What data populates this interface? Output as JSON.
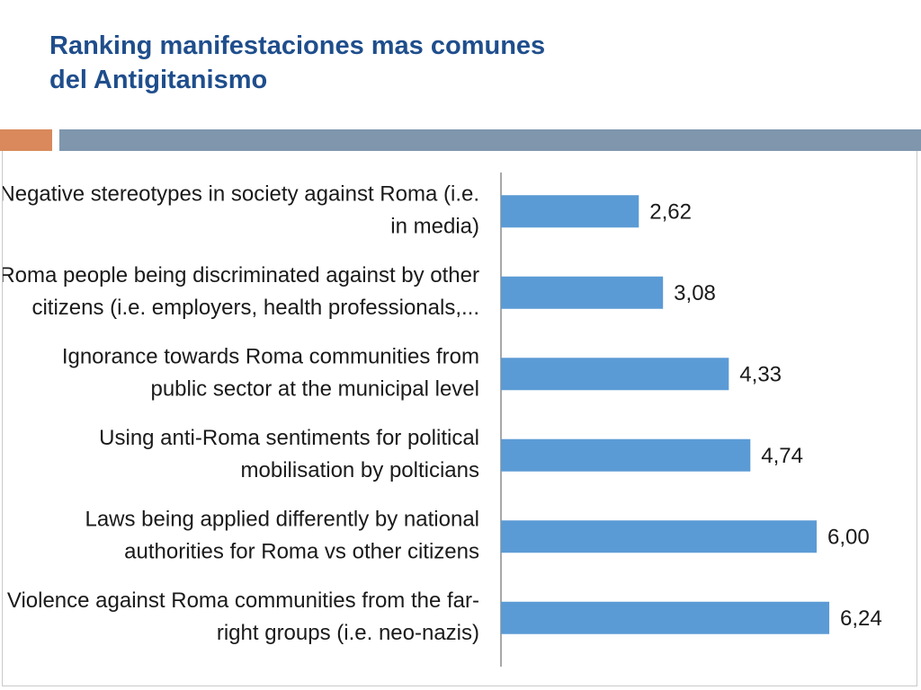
{
  "slide": {
    "title_line1": "Ranking manifestaciones mas comunes",
    "title_line2": "del Antigitanismo"
  },
  "colors": {
    "title": "#1f4e8c",
    "band_accent": "#d9895b",
    "band_main": "#7f96ad",
    "bar": "#5b9bd5",
    "axis": "#8c8c8c"
  },
  "chart_data": {
    "type": "bar",
    "orientation": "horizontal",
    "title": "",
    "xlabel": "",
    "ylabel": "",
    "grid": false,
    "legend": "none",
    "xlim": [
      0,
      6.5
    ],
    "categories": [
      [
        "Negative stereotypes in society against Roma (i.e.",
        "in media)"
      ],
      [
        "Roma people being discriminated against by other",
        "citizens (i.e. employers, health professionals,..."
      ],
      [
        "Ignorance towards Roma communities from",
        "public sector at the municipal level"
      ],
      [
        "Using anti-Roma sentiments for political",
        "mobilisation by polticians"
      ],
      [
        "Laws being applied differently by national",
        "authorities for Roma vs other citizens"
      ],
      [
        "Violence against Roma communities from the far-",
        "right groups (i.e. neo-nazis)"
      ]
    ],
    "values": [
      2.62,
      3.08,
      4.33,
      4.74,
      6.0,
      6.24
    ],
    "value_labels": [
      "2,62",
      "3,08",
      "4,33",
      "4,74",
      "6,00",
      "6,24"
    ]
  }
}
